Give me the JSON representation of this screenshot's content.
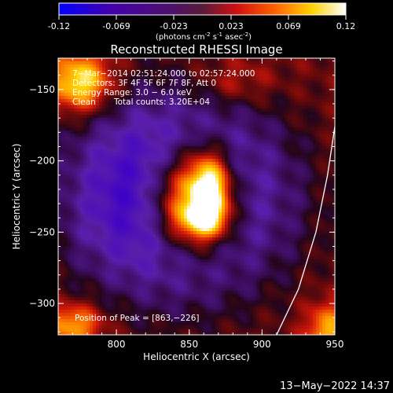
{
  "colorbar": {
    "ticks": [
      "-0.12",
      "-0.069",
      "-0.023",
      "0.023",
      "0.069",
      "0.12"
    ],
    "units_pre": "(photons cm",
    "units_exp1": "-2",
    "units_mid1": " s",
    "units_exp2": "-1",
    "units_mid2": " asec",
    "units_exp3": "-2",
    "units_post": ")"
  },
  "title": "Reconstructed RHESSI Image",
  "annotation": {
    "time_range": "7−Mar−2014 02:51:24.000 to 02:57:24.000",
    "detectors": "Detectors: 3F 4F 5F 6F 7F 8F, Att 0",
    "energy": "Energy Range: 3.0 − 6.0 keV",
    "clean": "Clean",
    "counts": "Total counts: 3.20E+04"
  },
  "peak_label": "Position of Peak = [863,−226]",
  "timestamp": "13−May−2022 14:37",
  "chart_data": {
    "type": "heatmap",
    "title": "Reconstructed RHESSI Image",
    "xlabel": "Heliocentric X (arcsec)",
    "ylabel": "Heliocentric Y (arcsec)",
    "xlim": [
      760,
      950
    ],
    "ylim": [
      -322,
      -128
    ],
    "x_ticks": [
      800,
      850,
      900,
      950
    ],
    "y_ticks": [
      -150,
      -200,
      -250,
      -300
    ],
    "x_tick_labels": [
      "800",
      "850",
      "900",
      "950"
    ],
    "y_tick_labels": [
      "−150",
      "−200",
      "−250",
      "−300"
    ],
    "color_range": [
      -0.12,
      0.12
    ],
    "colormap": "blue-purple-red-yellow-white",
    "peak": [
      863,
      -226
    ],
    "limb_curve": [
      [
        910,
        -322
      ],
      [
        925,
        -290
      ],
      [
        937,
        -250
      ],
      [
        945,
        -210
      ],
      [
        950,
        -176
      ]
    ],
    "blobs": [
      {
        "x": 852,
        "y": -227,
        "sx": 22,
        "sy": 26,
        "amp": 0.2
      },
      {
        "x": 864,
        "y": -221,
        "sx": 9,
        "sy": 18,
        "amp": 0.1
      },
      {
        "x": 858,
        "y": -242,
        "sx": 12,
        "sy": 8,
        "amp": 0.06
      },
      {
        "x": 842,
        "y": -225,
        "sx": 48,
        "sy": 45,
        "amp": -0.145
      },
      {
        "x": 775,
        "y": -145,
        "sx": 15,
        "sy": 14,
        "amp": 0.1
      },
      {
        "x": 770,
        "y": -315,
        "sx": 14,
        "sy": 10,
        "amp": 0.07
      },
      {
        "x": 945,
        "y": -320,
        "sx": 10,
        "sy": 14,
        "amp": 0.07
      },
      {
        "x": 880,
        "y": -145,
        "sx": 20,
        "sy": 12,
        "amp": 0.03
      }
    ]
  },
  "colors": {
    "background": "#000000",
    "foreground": "#ffffff"
  }
}
